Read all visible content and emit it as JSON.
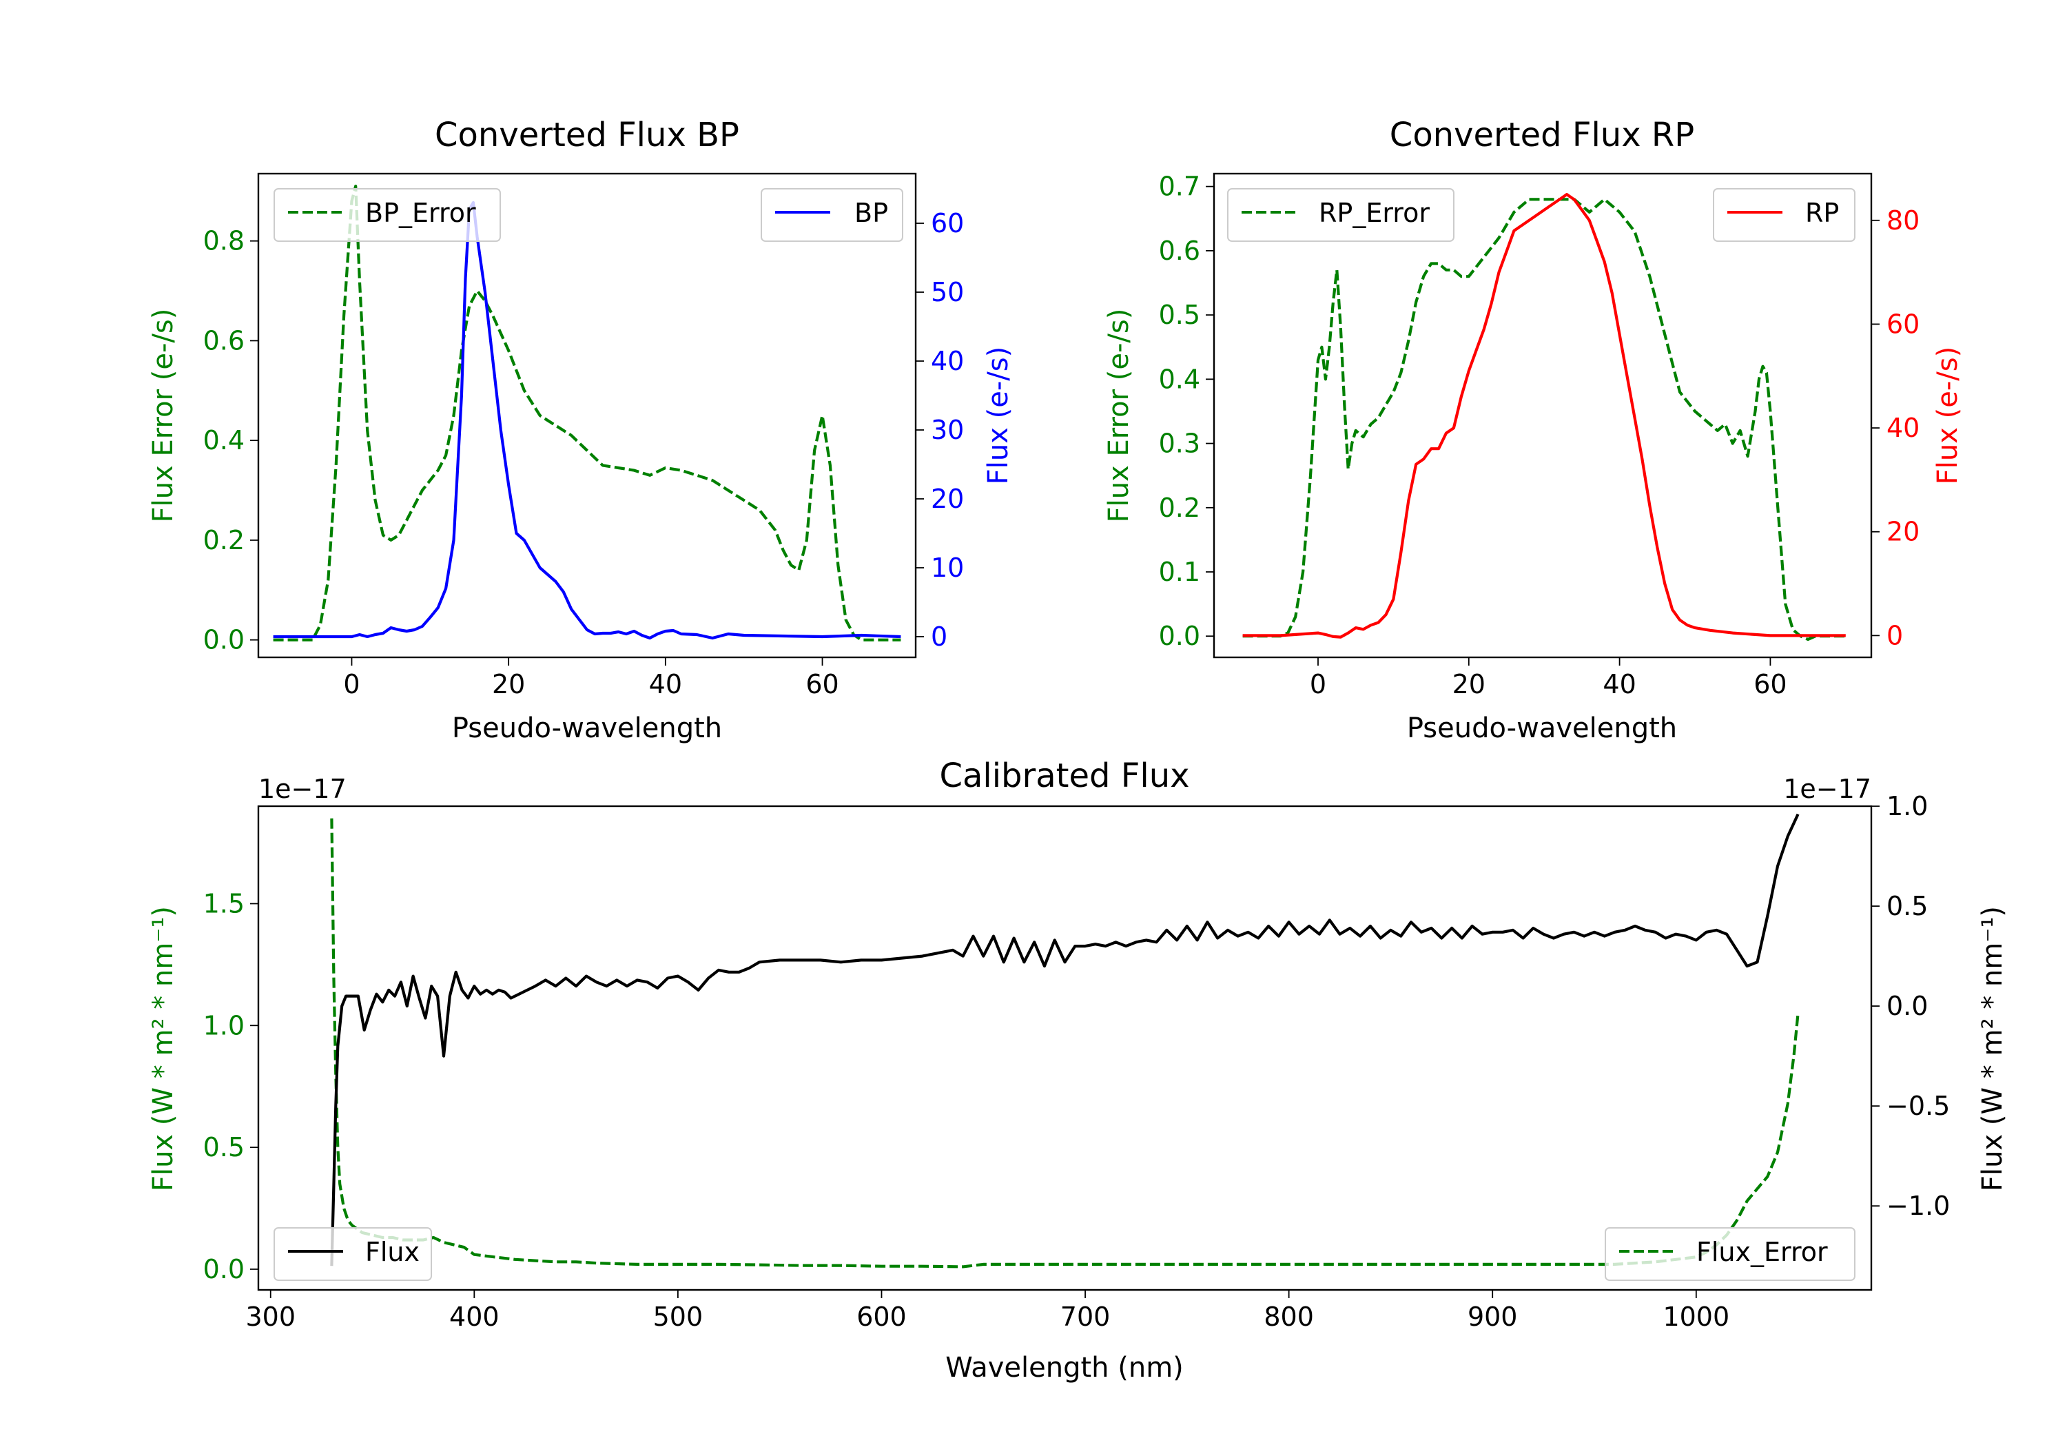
{
  "colors": {
    "green": "#008000",
    "blue": "#0000ff",
    "red": "#ff0000",
    "black": "#000000"
  },
  "chart_data": [
    {
      "type": "line",
      "title": "Converted Flux BP",
      "xlabel": "Pseudo-wavelength",
      "ylabel_left": "Flux Error (e-/s)",
      "ylabel_right": "Flux (e-/s)",
      "xlim": [
        -11.9,
        71.9
      ],
      "xticks": [
        0,
        20,
        40,
        60
      ],
      "ylim_left": [
        -0.035,
        0.935
      ],
      "yticks_left": [
        0.0,
        0.2,
        0.4,
        0.6,
        0.8
      ],
      "ylim_right": [
        -3.0,
        67.2
      ],
      "yticks_right": [
        0,
        10,
        20,
        30,
        40,
        50,
        60
      ],
      "series": [
        {
          "name": "BP_Error",
          "axis": "left",
          "style": "dashed",
          "color": "#008000",
          "x": [
            -10,
            -5,
            -4,
            -3,
            -2,
            -1,
            0,
            0.5,
            1,
            2,
            3,
            4,
            5,
            6,
            7,
            8,
            9,
            10,
            11,
            12,
            13,
            14,
            15,
            16,
            17,
            18,
            20,
            22,
            24,
            26,
            28,
            30,
            32,
            34,
            36,
            38,
            40,
            42,
            44,
            46,
            48,
            50,
            52,
            54,
            55,
            56,
            57,
            58,
            59,
            60,
            61,
            62,
            63,
            64,
            65,
            70
          ],
          "y": [
            0,
            0,
            0.03,
            0.12,
            0.35,
            0.65,
            0.88,
            0.91,
            0.72,
            0.42,
            0.28,
            0.21,
            0.2,
            0.21,
            0.24,
            0.27,
            0.3,
            0.32,
            0.34,
            0.37,
            0.45,
            0.58,
            0.67,
            0.7,
            0.68,
            0.65,
            0.58,
            0.5,
            0.45,
            0.43,
            0.41,
            0.38,
            0.35,
            0.345,
            0.34,
            0.33,
            0.345,
            0.34,
            0.33,
            0.32,
            0.3,
            0.28,
            0.26,
            0.22,
            0.18,
            0.15,
            0.14,
            0.2,
            0.38,
            0.45,
            0.35,
            0.15,
            0.04,
            0.01,
            0,
            0
          ]
        },
        {
          "name": "BP",
          "axis": "right",
          "style": "solid",
          "color": "#0000ff",
          "x": [
            -10,
            -5,
            0,
            1,
            2,
            3,
            4,
            5,
            6,
            7,
            8,
            9,
            10,
            11,
            12,
            13,
            14,
            14.5,
            15,
            15.5,
            16,
            17,
            18,
            19,
            20,
            21,
            22,
            23,
            24,
            25,
            26,
            27,
            28,
            29,
            30,
            31,
            32,
            33,
            34,
            35,
            36,
            37,
            38,
            39,
            40,
            41,
            42,
            44,
            46,
            48,
            50,
            55,
            60,
            65,
            70
          ],
          "y": [
            0,
            0,
            0,
            0.3,
            0,
            0.3,
            0.5,
            1.3,
            1,
            0.8,
            1,
            1.5,
            2.8,
            4.2,
            7,
            14,
            35,
            52,
            62,
            63,
            58,
            50,
            40,
            30,
            22,
            15,
            14,
            12,
            10,
            9,
            8,
            6.5,
            4,
            2.5,
            1,
            0.4,
            0.5,
            0.5,
            0.7,
            0.4,
            0.8,
            0.2,
            -0.2,
            0.4,
            0.8,
            0.9,
            0.4,
            0.3,
            -0.2,
            0.4,
            0.2,
            0.1,
            0,
            0.2,
            0
          ]
        }
      ],
      "legend": [
        {
          "label": "BP_Error",
          "position": "upper-left"
        },
        {
          "label": "BP",
          "position": "upper-right"
        }
      ]
    },
    {
      "type": "line",
      "title": "Converted Flux RP",
      "xlabel": "Pseudo-wavelength",
      "ylabel_left": "Flux Error (e-/s)",
      "ylabel_right": "Flux (e-/s)",
      "xlim": [
        -13.8,
        73.4
      ],
      "xticks": [
        0,
        20,
        40,
        60
      ],
      "ylim_left": [
        -0.033,
        0.72
      ],
      "yticks_left": [
        0.0,
        0.1,
        0.2,
        0.3,
        0.4,
        0.5,
        0.6,
        0.7
      ],
      "ylim_right": [
        -4.2,
        89
      ],
      "yticks_right": [
        0,
        20,
        40,
        60,
        80
      ],
      "series": [
        {
          "name": "RP_Error",
          "axis": "left",
          "style": "dashed",
          "color": "#008000",
          "x": [
            -10,
            -5,
            -4,
            -3,
            -2,
            -1,
            0,
            0.5,
            1,
            1.5,
            2,
            2.5,
            3,
            3.5,
            4,
            4.5,
            5,
            6,
            7,
            8,
            9,
            10,
            11,
            12,
            13,
            14,
            15,
            16,
            17,
            18,
            19,
            20,
            22,
            24,
            26,
            28,
            30,
            32,
            34,
            36,
            38,
            40,
            42,
            44,
            46,
            48,
            50,
            52,
            53,
            54,
            55,
            56,
            57,
            58,
            58.5,
            59,
            59.5,
            60,
            61,
            62,
            63,
            64,
            65,
            66,
            70
          ],
          "y": [
            0,
            0,
            0.005,
            0.03,
            0.1,
            0.25,
            0.43,
            0.45,
            0.4,
            0.45,
            0.52,
            0.57,
            0.48,
            0.36,
            0.26,
            0.3,
            0.32,
            0.31,
            0.33,
            0.34,
            0.36,
            0.38,
            0.41,
            0.46,
            0.52,
            0.56,
            0.58,
            0.58,
            0.57,
            0.57,
            0.56,
            0.56,
            0.59,
            0.62,
            0.66,
            0.68,
            0.68,
            0.68,
            0.68,
            0.66,
            0.68,
            0.66,
            0.63,
            0.56,
            0.47,
            0.38,
            0.35,
            0.33,
            0.32,
            0.33,
            0.3,
            0.32,
            0.28,
            0.35,
            0.4,
            0.42,
            0.41,
            0.35,
            0.2,
            0.05,
            0.01,
            0,
            -0.005,
            0,
            0
          ]
        },
        {
          "name": "RP",
          "axis": "right",
          "style": "solid",
          "color": "#ff0000",
          "x": [
            -10,
            -5,
            0,
            1,
            2,
            3,
            4,
            5,
            6,
            7,
            8,
            9,
            10,
            11,
            12,
            13,
            14,
            15,
            16,
            17,
            18,
            19,
            20,
            21,
            22,
            23,
            24,
            25,
            26,
            27,
            28,
            29,
            30,
            31,
            32,
            33,
            34,
            35,
            36,
            37,
            38,
            39,
            40,
            41,
            42,
            43,
            44,
            45,
            46,
            47,
            48,
            49,
            50,
            52,
            55,
            60,
            65,
            70
          ],
          "y": [
            0,
            0,
            0.5,
            0.2,
            -0.2,
            -0.3,
            0.5,
            1.5,
            1.2,
            2,
            2.5,
            4,
            7,
            16,
            26,
            33,
            34,
            36,
            36,
            39,
            40,
            46,
            51,
            55,
            59,
            64,
            70,
            74,
            78,
            79,
            80,
            81,
            82,
            83,
            84,
            85,
            84,
            82,
            80,
            76,
            72,
            66,
            58,
            50,
            42,
            34,
            25,
            17,
            10,
            5,
            3,
            2,
            1.5,
            1,
            0.5,
            0,
            0,
            0
          ]
        }
      ],
      "legend": [
        {
          "label": "RP_Error",
          "position": "upper-left"
        },
        {
          "label": "RP",
          "position": "upper-right"
        }
      ]
    },
    {
      "type": "line",
      "title": "Calibrated Flux",
      "xlabel": "Wavelength (nm)",
      "ylabel_left": "Flux (W * m² * nm⁻¹)",
      "ylabel_right": "Flux (W * m² * nm⁻¹)",
      "offset_left": "1e−17",
      "offset_right": "1e−17",
      "xlim": [
        294,
        1086
      ],
      "xticks": [
        300,
        400,
        500,
        600,
        700,
        800,
        900,
        1000
      ],
      "ylim_left": [
        -0.085,
        1.9
      ],
      "yticks_left": [
        0.0,
        0.5,
        1.0,
        1.5
      ],
      "yticklabels_left": [
        "0.0",
        "0.5",
        "1.0",
        "1.5"
      ],
      "ylim_right": [
        -1.42,
        1.0
      ],
      "yticks_right": [
        -1.0,
        -0.5,
        0.0,
        0.5,
        1.0
      ],
      "yticklabels_right": [
        "−1.0",
        "−0.5",
        "0.0",
        "0.5",
        "1.0"
      ],
      "series": [
        {
          "name": "Flux",
          "axis": "right",
          "style": "solid",
          "color": "#000000",
          "x": [
            330,
            331,
            332,
            333,
            335,
            337,
            340,
            343,
            346,
            349,
            352,
            355,
            358,
            361,
            364,
            367,
            370,
            373,
            376,
            379,
            382,
            385,
            388,
            391,
            394,
            397,
            400,
            403,
            406,
            409,
            412,
            415,
            418,
            422,
            426,
            430,
            435,
            440,
            445,
            450,
            455,
            460,
            465,
            470,
            475,
            480,
            485,
            490,
            495,
            500,
            505,
            510,
            515,
            520,
            525,
            530,
            535,
            540,
            550,
            560,
            570,
            580,
            590,
            600,
            610,
            620,
            630,
            635,
            640,
            645,
            650,
            655,
            660,
            665,
            670,
            675,
            680,
            685,
            690,
            695,
            700,
            705,
            710,
            715,
            720,
            725,
            730,
            735,
            740,
            745,
            750,
            755,
            760,
            765,
            770,
            775,
            780,
            785,
            790,
            795,
            800,
            805,
            810,
            815,
            820,
            825,
            830,
            835,
            840,
            845,
            850,
            855,
            860,
            865,
            870,
            875,
            880,
            885,
            890,
            895,
            900,
            905,
            910,
            915,
            920,
            925,
            930,
            935,
            940,
            945,
            950,
            955,
            960,
            965,
            970,
            975,
            980,
            985,
            990,
            995,
            1000,
            1005,
            1010,
            1015,
            1020,
            1025,
            1030,
            1035,
            1040,
            1045,
            1050
          ],
          "y": [
            -1.3,
            -0.9,
            -0.5,
            -0.2,
            0.0,
            0.05,
            0.05,
            0.05,
            -0.12,
            -0.02,
            0.06,
            0.02,
            0.08,
            0.05,
            0.12,
            0.0,
            0.15,
            0.04,
            -0.06,
            0.1,
            0.05,
            -0.25,
            0.05,
            0.17,
            0.08,
            0.04,
            0.1,
            0.06,
            0.08,
            0.06,
            0.08,
            0.07,
            0.04,
            0.06,
            0.08,
            0.1,
            0.13,
            0.1,
            0.14,
            0.1,
            0.15,
            0.12,
            0.1,
            0.13,
            0.1,
            0.13,
            0.12,
            0.09,
            0.14,
            0.15,
            0.12,
            0.08,
            0.14,
            0.18,
            0.17,
            0.17,
            0.19,
            0.22,
            0.23,
            0.23,
            0.23,
            0.22,
            0.23,
            0.23,
            0.24,
            0.25,
            0.27,
            0.28,
            0.25,
            0.35,
            0.25,
            0.35,
            0.22,
            0.34,
            0.22,
            0.32,
            0.2,
            0.33,
            0.22,
            0.3,
            0.3,
            0.31,
            0.3,
            0.32,
            0.3,
            0.32,
            0.33,
            0.32,
            0.38,
            0.33,
            0.4,
            0.33,
            0.42,
            0.34,
            0.38,
            0.35,
            0.37,
            0.34,
            0.4,
            0.35,
            0.42,
            0.36,
            0.4,
            0.36,
            0.43,
            0.36,
            0.39,
            0.35,
            0.4,
            0.34,
            0.38,
            0.35,
            0.42,
            0.37,
            0.39,
            0.34,
            0.39,
            0.34,
            0.4,
            0.36,
            0.37,
            0.37,
            0.38,
            0.34,
            0.39,
            0.36,
            0.34,
            0.36,
            0.37,
            0.35,
            0.37,
            0.35,
            0.37,
            0.38,
            0.4,
            0.38,
            0.37,
            0.34,
            0.36,
            0.35,
            0.33,
            0.37,
            0.38,
            0.36,
            0.28,
            0.2,
            0.22,
            0.45,
            0.7,
            0.85,
            0.96
          ]
        },
        {
          "name": "Flux_Error",
          "axis": "left",
          "style": "dashed",
          "color": "#008000",
          "x": [
            330,
            331,
            332,
            333,
            334,
            336,
            338,
            340,
            345,
            350,
            355,
            360,
            365,
            370,
            375,
            380,
            385,
            390,
            395,
            400,
            410,
            420,
            430,
            440,
            450,
            460,
            480,
            500,
            520,
            540,
            560,
            580,
            600,
            620,
            640,
            650,
            660,
            680,
            700,
            750,
            800,
            850,
            900,
            950,
            960,
            970,
            980,
            990,
            1000,
            1005,
            1010,
            1015,
            1020,
            1025,
            1030,
            1035,
            1040,
            1045,
            1048,
            1050
          ],
          "y": [
            1.85,
            1.2,
            0.8,
            0.5,
            0.35,
            0.25,
            0.2,
            0.18,
            0.15,
            0.14,
            0.13,
            0.13,
            0.12,
            0.12,
            0.12,
            0.13,
            0.11,
            0.1,
            0.09,
            0.06,
            0.05,
            0.04,
            0.035,
            0.03,
            0.03,
            0.025,
            0.02,
            0.02,
            0.02,
            0.018,
            0.015,
            0.015,
            0.012,
            0.012,
            0.01,
            0.02,
            0.02,
            0.02,
            0.02,
            0.02,
            0.02,
            0.02,
            0.02,
            0.02,
            0.02,
            0.025,
            0.03,
            0.04,
            0.05,
            0.07,
            0.1,
            0.14,
            0.2,
            0.28,
            0.33,
            0.38,
            0.48,
            0.68,
            0.88,
            1.05
          ]
        }
      ],
      "legend": [
        {
          "label": "Flux",
          "position": "lower-left"
        },
        {
          "label": "Flux_Error",
          "position": "lower-right"
        }
      ]
    }
  ]
}
